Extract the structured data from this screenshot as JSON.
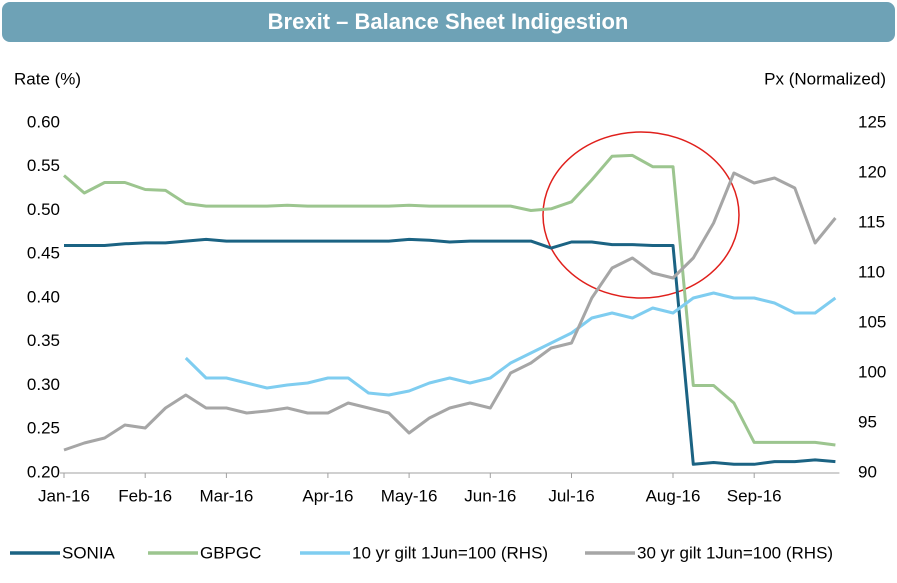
{
  "chart_data": {
    "type": "line",
    "title": "Brexit – Balance Sheet Indigestion",
    "ylabel": "Rate (%)",
    "y2label": "Px (Normalized)",
    "categories": [
      "Jan-16",
      null,
      null,
      null,
      "Feb-16",
      null,
      null,
      null,
      "Mar-16",
      null,
      null,
      null,
      null,
      "Apr-16",
      null,
      null,
      null,
      "May-16",
      null,
      null,
      null,
      "Jun-16",
      null,
      null,
      null,
      "Jul-16",
      null,
      null,
      null,
      null,
      "Aug-16",
      null,
      null,
      null,
      "Sep-16",
      null,
      null,
      null,
      null
    ],
    "ylim": [
      0.2,
      0.6
    ],
    "yticks": [
      {
        "value": 0.2,
        "label": "0.20"
      },
      0.25,
      {
        "value": 0.3,
        "label": "0.30"
      },
      0.35,
      {
        "value": 0.4,
        "label": "0.40"
      },
      0.45,
      {
        "value": 0.5,
        "label": "0.50"
      },
      0.55,
      {
        "value": 0.6,
        "label": "0.60"
      }
    ],
    "y2lim": [
      90,
      125
    ],
    "y2ticks": [
      90,
      95,
      100,
      105,
      110,
      115,
      120,
      125
    ],
    "grid": false,
    "legend": "bottom",
    "series": [
      {
        "name": "SONIA",
        "color": "#1b6383",
        "axis": "y",
        "values": [
          0.46,
          0.46,
          0.46,
          0.462,
          0.463,
          0.463,
          0.465,
          0.467,
          0.465,
          0.465,
          0.465,
          0.465,
          0.465,
          0.465,
          0.465,
          0.465,
          0.465,
          0.467,
          0.466,
          0.464,
          0.465,
          0.465,
          0.465,
          0.465,
          0.457,
          0.464,
          0.464,
          0.461,
          0.461,
          0.46,
          0.46,
          0.21,
          0.212,
          0.21,
          0.21,
          0.213,
          0.213,
          0.215,
          0.213
        ]
      },
      {
        "name": "GBPGC",
        "color": "#9cc58f",
        "axis": "y",
        "values": [
          0.54,
          0.52,
          0.532,
          0.532,
          0.524,
          0.523,
          0.508,
          0.505,
          0.505,
          0.505,
          0.505,
          0.506,
          0.505,
          0.505,
          0.505,
          0.505,
          0.505,
          0.506,
          0.505,
          0.505,
          0.505,
          0.505,
          0.505,
          0.5,
          0.502,
          0.51,
          0.535,
          0.562,
          0.563,
          0.55,
          0.55,
          0.3,
          0.3,
          0.28,
          0.235,
          0.235,
          0.235,
          0.235,
          0.232
        ]
      },
      {
        "name": "10 yr gilt 1Jun=100 (RHS)",
        "color": "#7fcdf0",
        "axis": "y2",
        "values": [
          null,
          null,
          null,
          null,
          null,
          null,
          101.5,
          99.5,
          99.5,
          99,
          98.5,
          98.8,
          99,
          99.5,
          99.5,
          98,
          97.8,
          98.2,
          99,
          99.5,
          99,
          99.5,
          101,
          102,
          103,
          104,
          105.5,
          106,
          105.5,
          106.5,
          106,
          107.5,
          108,
          107.5,
          107.5,
          107,
          106,
          106,
          107.5
        ]
      },
      {
        "name": "30 yr gilt 1Jun=100 (RHS)",
        "color": "#a6a6a6",
        "axis": "y2",
        "values": [
          92.3,
          93,
          93.5,
          94.8,
          94.5,
          96.5,
          97.8,
          96.5,
          96.5,
          96,
          96.2,
          96.5,
          96,
          96,
          97,
          96.5,
          96,
          94,
          95.5,
          96.5,
          97,
          96.5,
          100,
          101,
          102.5,
          103,
          107.5,
          110.5,
          111.5,
          110,
          109.5,
          111.5,
          115,
          120,
          119,
          119.5,
          118.5,
          113,
          115.5
        ]
      }
    ]
  }
}
